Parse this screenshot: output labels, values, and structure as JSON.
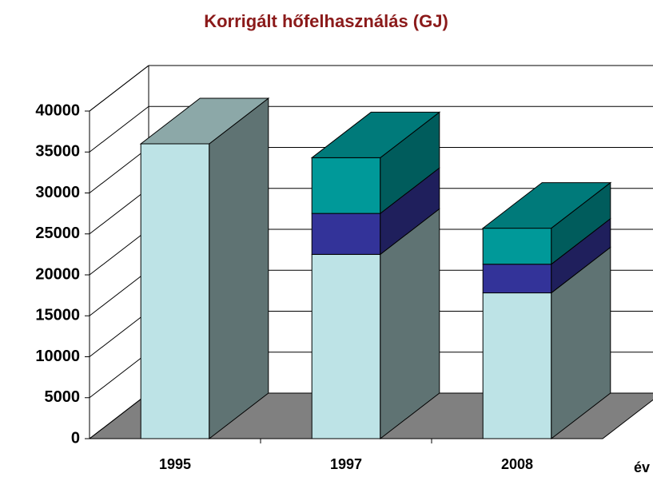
{
  "chart_data": {
    "type": "bar3d_stacked",
    "title": "Korrigált hőfelhasználás (GJ)",
    "x_label": "év",
    "categories": [
      "1995",
      "1997",
      "2008"
    ],
    "series": [
      {
        "color": "#bde3e6",
        "values": [
          36000,
          22500,
          17800
        ]
      },
      {
        "color": "#333399",
        "values": [
          null,
          5000,
          3500
        ]
      },
      {
        "color": "#009999",
        "values": [
          null,
          6800,
          4400
        ]
      }
    ],
    "ylim": [
      0,
      40000
    ],
    "yticks": [
      0,
      5000,
      10000,
      15000,
      20000,
      25000,
      30000,
      35000,
      40000
    ],
    "grid": true
  }
}
